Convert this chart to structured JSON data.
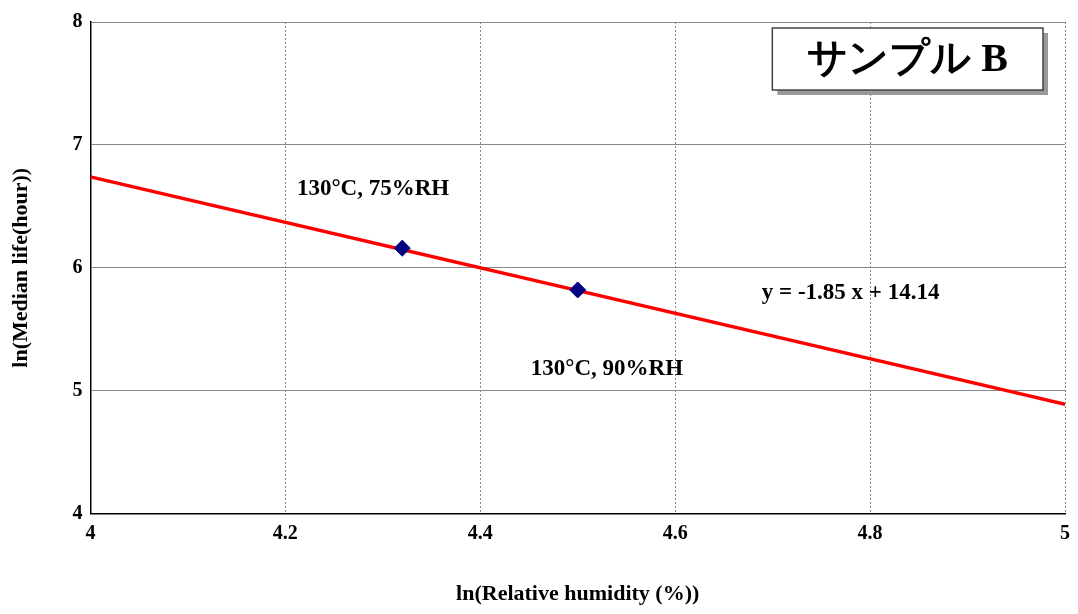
{
  "chart_data": {
    "type": "scatter",
    "title": "サンプル B",
    "xlabel": "ln(Relative humidity (%))",
    "ylabel": "ln(Median life(hour))",
    "xlim": [
      4,
      5
    ],
    "xticks": [
      4,
      4.2,
      4.4,
      4.6,
      4.8,
      5
    ],
    "ylim": [
      4,
      8
    ],
    "yticks": [
      4,
      5,
      6,
      7,
      8
    ],
    "grid": true,
    "legend": false,
    "marker": "diamond",
    "series": [
      {
        "x": [
          4.32,
          4.5
        ],
        "values": [
          6.16,
          5.82
        ],
        "color": "#000080"
      },
      {
        "type": "line",
        "x": [
          4,
          5
        ],
        "values": [
          6.74,
          4.89
        ],
        "color": "#ff0000",
        "marker": "none",
        "line_style": "solid"
      }
    ],
    "annotations": [
      "130°C, 75%RH",
      "130°C, 90%RH",
      "y = -1.85 x + 14.14"
    ]
  }
}
